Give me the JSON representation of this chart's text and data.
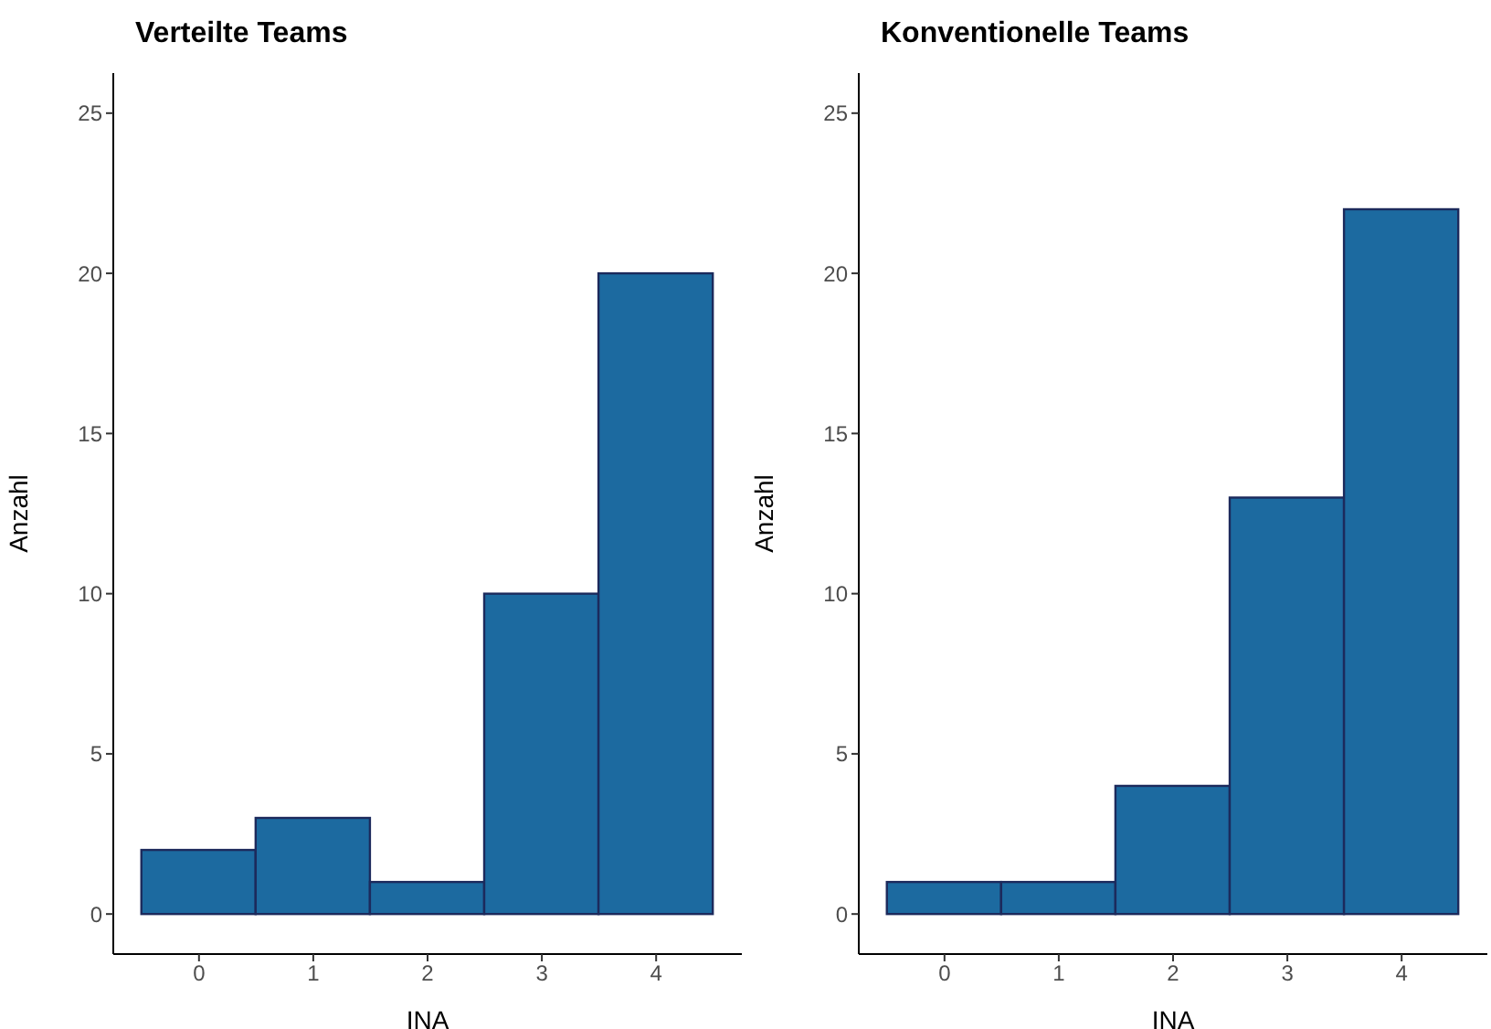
{
  "chart_data": [
    {
      "type": "histogram",
      "title": "Verteilte Teams",
      "xlabel": "INA",
      "ylabel": "Anzahl",
      "bins": [
        -0.5,
        0.5,
        1.5,
        2.5,
        3.5,
        4.5
      ],
      "values": [
        2,
        3,
        1,
        10,
        20
      ],
      "color": "#1c6aa0",
      "xlim": [
        -0.75,
        4.75
      ],
      "ylim": [
        -1.25,
        26.25
      ],
      "xticks": [
        0,
        1,
        2,
        3,
        4
      ],
      "yticks": [
        0,
        5,
        10,
        15,
        20,
        25
      ]
    },
    {
      "type": "histogram",
      "title": "Konventionelle Teams",
      "xlabel": "INA",
      "ylabel": "Anzahl",
      "bins": [
        -0.5,
        0.5,
        1.5,
        2.5,
        3.5,
        4.5
      ],
      "values": [
        1,
        1,
        4,
        13,
        22
      ],
      "color": "#1c6aa0",
      "xlim": [
        -0.75,
        4.75
      ],
      "ylim": [
        -1.25,
        26.25
      ],
      "xticks": [
        0,
        1,
        2,
        3,
        4
      ],
      "yticks": [
        0,
        5,
        10,
        15,
        20,
        25
      ]
    }
  ]
}
